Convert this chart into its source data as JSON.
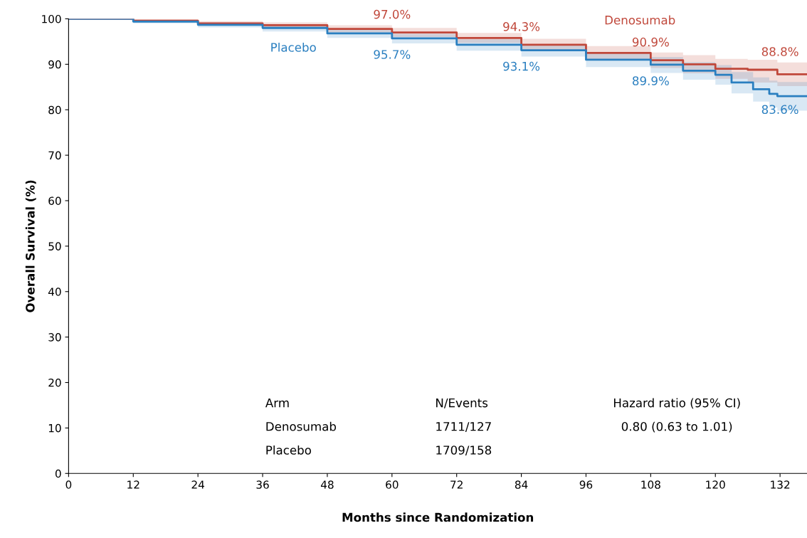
{
  "chart_data": {
    "type": "step",
    "xlabel": "Months since Randomization",
    "ylabel": "Overall Survival (%)",
    "xlim": [
      0,
      137
    ],
    "ylim": [
      0,
      100
    ],
    "xticks": [
      0,
      12,
      24,
      36,
      48,
      60,
      72,
      84,
      96,
      108,
      120,
      132
    ],
    "yticks": [
      0,
      10,
      20,
      30,
      40,
      50,
      60,
      70,
      80,
      90,
      100
    ],
    "grid": false,
    "legend": false,
    "line_style": "solid",
    "marker": "none",
    "series": [
      {
        "name": "Denosumab",
        "color": "#c0473a",
        "x": [
          0,
          12,
          24,
          36,
          48,
          60,
          72,
          84,
          96,
          108,
          114,
          120,
          126,
          131.5,
          137
        ],
        "values": [
          100,
          99.6,
          99.0,
          98.6,
          97.8,
          97.0,
          95.8,
          94.3,
          92.5,
          90.9,
          90.0,
          89.0,
          88.8,
          87.8,
          87.8
        ],
        "lower": [
          100,
          99.3,
          98.5,
          97.9,
          97.0,
          96.0,
          94.7,
          93.0,
          91.0,
          89.2,
          88.0,
          86.8,
          86.0,
          85.2,
          85.2
        ],
        "upper": [
          100,
          99.9,
          99.5,
          99.2,
          98.6,
          98.0,
          96.9,
          95.6,
          94.0,
          92.6,
          92.0,
          91.2,
          91.0,
          90.4,
          90.4
        ]
      },
      {
        "name": "Placebo",
        "color": "#2a7fc0",
        "x": [
          0,
          12,
          24,
          36,
          48,
          60,
          72,
          84,
          96,
          108,
          114,
          120,
          123,
          127,
          130,
          131.5,
          137
        ],
        "values": [
          100,
          99.4,
          98.7,
          98.0,
          96.8,
          95.7,
          94.3,
          93.1,
          91.0,
          89.9,
          88.6,
          87.7,
          86.0,
          84.5,
          83.5,
          83.0,
          83.0
        ],
        "lower": [
          100,
          99.0,
          98.1,
          97.2,
          95.8,
          94.6,
          93.0,
          91.7,
          89.4,
          88.1,
          86.6,
          85.5,
          83.6,
          81.8,
          80.5,
          79.8,
          79.8
        ],
        "upper": [
          100,
          99.8,
          99.2,
          98.7,
          97.7,
          96.7,
          95.5,
          94.4,
          92.5,
          91.6,
          90.5,
          89.8,
          88.3,
          87.1,
          86.4,
          86.1,
          86.1
        ]
      }
    ],
    "annotations": [
      {
        "text": "97.0%",
        "x": 60,
        "y": 97.0
      },
      {
        "text": "95.7%",
        "x": 60,
        "y": 95.7
      },
      {
        "text": "94.3%",
        "x": 84,
        "y": 94.3
      },
      {
        "text": "93.1%",
        "x": 84,
        "y": 93.1
      },
      {
        "text": "90.9%",
        "x": 108,
        "y": 90.9
      },
      {
        "text": "89.9%",
        "x": 108,
        "y": 89.9
      },
      {
        "text": "88.8%",
        "x": 132,
        "y": 88.8
      },
      {
        "text": "83.6%",
        "x": 132,
        "y": 83.6
      },
      "Arm",
      "N/Events",
      "Hazard ratio (95% CI)",
      "Denosumab",
      "1711/127",
      "0.80 (0.63 to 1.01)",
      "Placebo",
      "1709/158"
    ]
  }
}
